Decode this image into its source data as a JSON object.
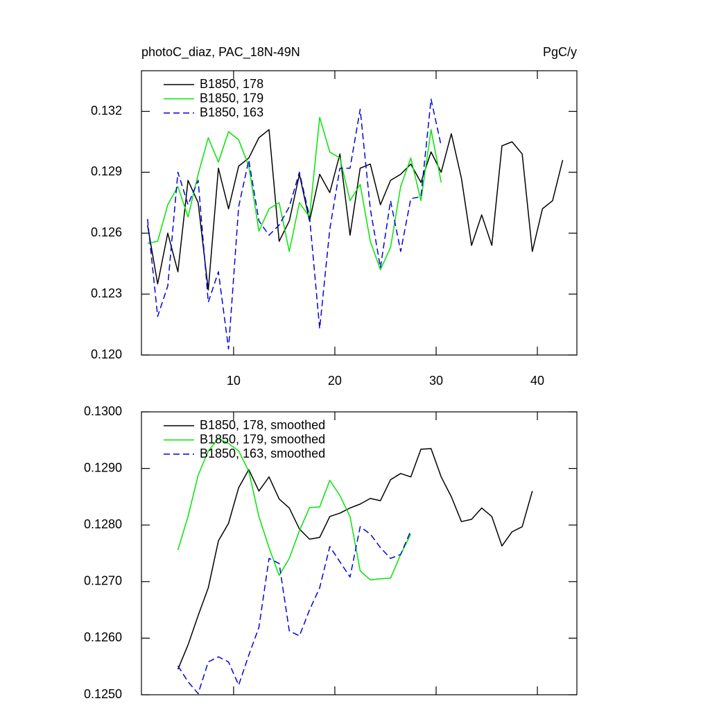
{
  "chart_data": [
    {
      "type": "line",
      "title": "photoC_diaz, PAC_18N-49N",
      "title_right": "PgC/y",
      "xlim": [
        0.9,
        43.9
      ],
      "ylim": [
        0.12,
        0.134
      ],
      "xticks": [
        10,
        20,
        30,
        40
      ],
      "show_xtick_labels": true,
      "yticks": [
        {
          "value": 0.12,
          "label": "0.120"
        },
        0.123,
        0.126,
        0.129,
        0.132
      ],
      "legend": "upper-left",
      "series": [
        {
          "name": "B1850, 178",
          "color": "#000000",
          "dash": false,
          "x": [
            1.5,
            2.5,
            3.5,
            4.5,
            5.5,
            6.5,
            7.5,
            8.5,
            9.5,
            10.5,
            11.5,
            12.5,
            13.5,
            14.5,
            15.5,
            16.5,
            17.5,
            18.5,
            19.5,
            20.5,
            21.5,
            22.5,
            23.5,
            24.5,
            25.5,
            26.5,
            27.5,
            28.5,
            29.5,
            30.5,
            31.5,
            32.5,
            33.5,
            34.5,
            35.5,
            36.5,
            37.5,
            38.5,
            39.5,
            40.5,
            41.5,
            42.5
          ],
          "values": [
            0.1264,
            0.1235,
            0.126,
            0.1241,
            0.1286,
            0.1275,
            0.1232,
            0.1292,
            0.1272,
            0.1293,
            0.1297,
            0.1307,
            0.1311,
            0.1256,
            0.1266,
            0.1289,
            0.1266,
            0.1289,
            0.128,
            0.1299,
            0.1259,
            0.1292,
            0.1294,
            0.1274,
            0.1286,
            0.1289,
            0.1294,
            0.1285,
            0.13,
            0.129,
            0.1309,
            0.1287,
            0.1254,
            0.1269,
            0.1254,
            0.1303,
            0.1305,
            0.1299,
            0.1251,
            0.1272,
            0.1276,
            0.1296
          ]
        },
        {
          "name": "B1850, 179",
          "color": "#00e600",
          "dash": false,
          "x": [
            1.5,
            2.5,
            3.5,
            4.5,
            5.5,
            6.5,
            7.5,
            8.5,
            9.5,
            10.5,
            11.5,
            12.5,
            13.5,
            14.5,
            15.5,
            16.5,
            17.5,
            18.5,
            19.5,
            20.5,
            21.5,
            22.5,
            23.5,
            24.5,
            25.5,
            26.5,
            27.5,
            28.5,
            29.5,
            30.5
          ],
          "values": [
            0.1255,
            0.1256,
            0.1274,
            0.1283,
            0.1268,
            0.1289,
            0.1307,
            0.1295,
            0.131,
            0.1306,
            0.1293,
            0.1261,
            0.1272,
            0.1275,
            0.1251,
            0.1275,
            0.1268,
            0.1317,
            0.13,
            0.1297,
            0.1276,
            0.1284,
            0.1256,
            0.1242,
            0.1253,
            0.1283,
            0.1297,
            0.1276,
            0.1311,
            0.1285
          ]
        },
        {
          "name": "B1850, 163",
          "color": "#0000dd",
          "dash": true,
          "x": [
            1.5,
            2.5,
            3.5,
            4.5,
            5.5,
            6.5,
            7.5,
            8.5,
            9.5,
            10.5,
            11.5,
            12.5,
            13.5,
            14.5,
            15.5,
            16.5,
            17.5,
            18.5,
            19.5,
            20.5,
            21.5,
            22.5,
            23.5,
            24.5,
            25.5,
            26.5,
            27.5,
            28.5,
            29.5,
            30.5
          ],
          "values": [
            0.1267,
            0.1219,
            0.1234,
            0.129,
            0.1274,
            0.1286,
            0.1226,
            0.1241,
            0.1203,
            0.1273,
            0.1296,
            0.1266,
            0.1259,
            0.1264,
            0.1273,
            0.129,
            0.1268,
            0.1213,
            0.1262,
            0.1292,
            0.1292,
            0.1321,
            0.1272,
            0.1243,
            0.1276,
            0.1251,
            0.1277,
            0.1278,
            0.1326,
            0.1303
          ]
        }
      ]
    },
    {
      "type": "line",
      "xlim": [
        0.9,
        43.9
      ],
      "ylim": [
        0.125,
        0.13
      ],
      "xticks": [
        10,
        20,
        30,
        40
      ],
      "show_xtick_labels": false,
      "yticks": [
        {
          "value": 0.125,
          "label": "0.1250"
        },
        {
          "value": 0.126,
          "label": "0.1260"
        },
        {
          "value": 0.127,
          "label": "0.1270"
        },
        {
          "value": 0.128,
          "label": "0.1280"
        },
        {
          "value": 0.129,
          "label": "0.1290"
        },
        {
          "value": 0.13,
          "label": "0.1300"
        }
      ],
      "legend": "upper-left",
      "series": [
        {
          "name": "B1850, 178, smoothed",
          "color": "#000000",
          "dash": false,
          "x": [
            4.5,
            5.5,
            6.5,
            7.5,
            8.5,
            9.5,
            10.5,
            11.5,
            12.5,
            13.5,
            14.5,
            15.5,
            16.5,
            17.5,
            18.5,
            19.5,
            20.5,
            21.5,
            22.5,
            23.5,
            24.5,
            25.5,
            26.5,
            27.5,
            28.5,
            29.5,
            30.5,
            31.5,
            32.5,
            33.5,
            34.5,
            35.5,
            36.5,
            37.5,
            38.5,
            39.5
          ],
          "values": [
            0.12545,
            0.12588,
            0.1264,
            0.12689,
            0.12772,
            0.12803,
            0.12866,
            0.12898,
            0.1286,
            0.12885,
            0.12846,
            0.1283,
            0.12793,
            0.12775,
            0.12778,
            0.12815,
            0.12821,
            0.1283,
            0.12837,
            0.12847,
            0.12843,
            0.1288,
            0.12891,
            0.12885,
            0.12934,
            0.12935,
            0.12885,
            0.1285,
            0.12806,
            0.1281,
            0.1283,
            0.12815,
            0.12763,
            0.12788,
            0.12797,
            0.1286
          ]
        },
        {
          "name": "B1850, 179, smoothed",
          "color": "#00e600",
          "dash": false,
          "x": [
            4.5,
            5.5,
            6.5,
            7.5,
            8.5,
            9.5,
            10.5,
            11.5,
            12.5,
            13.5,
            14.5,
            15.5,
            16.5,
            17.5,
            18.5,
            19.5,
            20.5,
            21.5,
            22.5,
            23.5,
            24.5,
            25.5,
            26.5,
            27.5
          ],
          "values": [
            0.12756,
            0.12815,
            0.12888,
            0.12931,
            0.12953,
            0.12944,
            0.12931,
            0.12895,
            0.12815,
            0.1276,
            0.12711,
            0.12741,
            0.1279,
            0.12831,
            0.12832,
            0.12879,
            0.12852,
            0.12815,
            0.12719,
            0.12703,
            0.12705,
            0.12706,
            0.12748,
            0.12784
          ]
        },
        {
          "name": "B1850, 163, smoothed",
          "color": "#0000dd",
          "dash": true,
          "x": [
            4.5,
            5.5,
            6.5,
            7.5,
            8.5,
            9.5,
            10.5,
            11.5,
            12.5,
            13.5,
            14.5,
            15.5,
            16.5,
            17.5,
            18.5,
            19.5,
            20.5,
            21.5,
            22.5,
            23.5,
            24.5,
            25.5,
            26.5,
            27.5
          ],
          "values": [
            0.12551,
            0.12523,
            0.12502,
            0.12558,
            0.12567,
            0.12558,
            0.12517,
            0.1257,
            0.12619,
            0.12741,
            0.12732,
            0.12613,
            0.12604,
            0.1265,
            0.12689,
            0.12762,
            0.12735,
            0.12708,
            0.12797,
            0.12784,
            0.1276,
            0.12741,
            0.12748,
            0.1279
          ]
        }
      ]
    }
  ]
}
